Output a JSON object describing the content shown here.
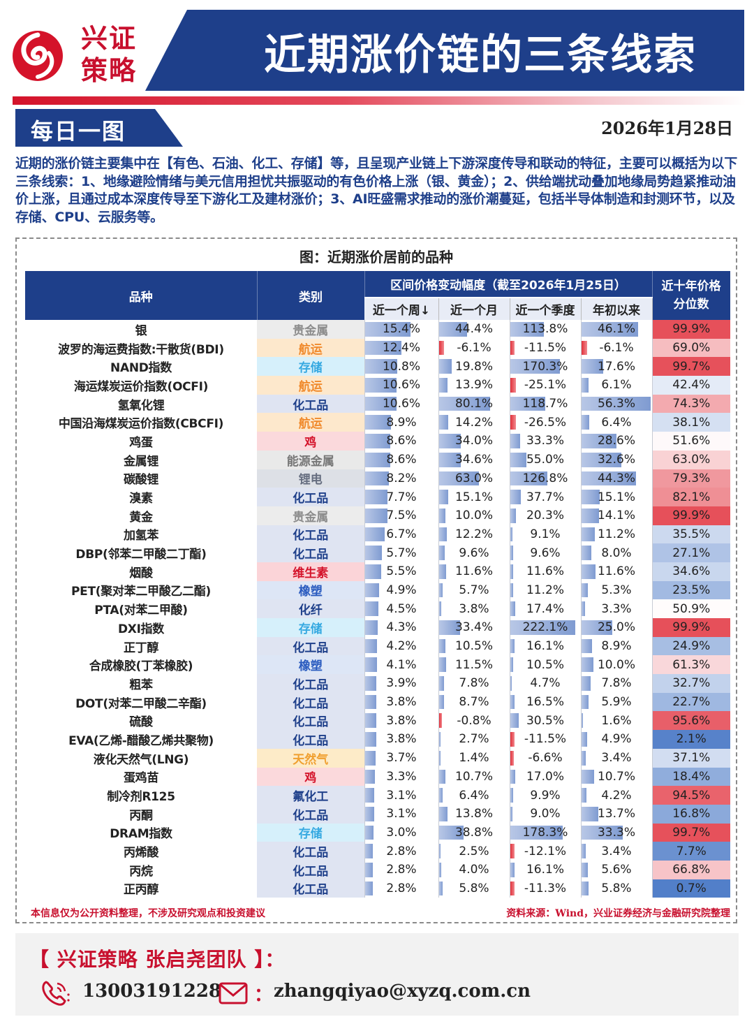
{
  "brand": {
    "line1": "兴证",
    "line2": "策略",
    "color": "#c8102e"
  },
  "header": {
    "title": "近期涨价链的三条线索",
    "banner_color": "#1e3f8a"
  },
  "sub_header": {
    "title": "每日一图",
    "date": "2026年1月28日"
  },
  "intro": "近期的涨价链主要集中在【有色、石油、化工、存储】等，且呈现产业链上下游深度传导和联动的特征，主要可以概括为以下三条线索：1、地缘避险情绪与美元信用担忧共振驱动的有色价格上涨（银、黄金）；2、供给端扰动叠加地缘局势趋紧推动油价上涨，且通过成本深度传导至下游化工及建材涨价；3、AI旺盛需求推动的涨价潮蔓延，包括半导体制造和封测环节，以及存储、CPU、云服务等。",
  "figure": {
    "caption": "图：近期涨价居前的品种"
  },
  "table": {
    "headers": {
      "name": "品种",
      "category": "类别",
      "change_group": "区间价格变动幅度（截至2026年1月25日）",
      "week": "近一个周↓",
      "month": "近一个月",
      "quarter": "近一个季度",
      "ytd": "年初以来",
      "percentile": "近十年价格分位数"
    },
    "rows": [
      {
        "name": "银",
        "cat": "贵金属",
        "w": 15.4,
        "m": 44.4,
        "q": 113.8,
        "y": 46.1,
        "p": 99.9
      },
      {
        "name": "波罗的海运费指数:干散货(BDI)",
        "cat": "航运",
        "w": 12.4,
        "m": -6.1,
        "q": -11.5,
        "y": -6.1,
        "p": 69.0
      },
      {
        "name": "NAND指数",
        "cat": "存储",
        "w": 10.8,
        "m": 19.8,
        "q": 170.3,
        "y": 17.6,
        "p": 99.7
      },
      {
        "name": "海运煤炭运价指数(OCFI)",
        "cat": "航运",
        "w": 10.6,
        "m": 13.9,
        "q": -25.1,
        "y": 6.1,
        "p": 42.4
      },
      {
        "name": "氢氧化锂",
        "cat": "化工品",
        "w": 10.6,
        "m": 80.1,
        "q": 118.7,
        "y": 56.3,
        "p": 74.3
      },
      {
        "name": "中国沿海煤炭运价指数(CBCFI)",
        "cat": "航运",
        "w": 8.9,
        "m": 14.2,
        "q": -26.5,
        "y": 6.4,
        "p": 38.1
      },
      {
        "name": "鸡蛋",
        "cat": "鸡",
        "w": 8.6,
        "m": 34.0,
        "q": 33.3,
        "y": 28.6,
        "p": 51.6
      },
      {
        "name": "金属锂",
        "cat": "能源金属",
        "w": 8.6,
        "m": 34.6,
        "q": 55.0,
        "y": 32.6,
        "p": 63.0
      },
      {
        "name": "碳酸锂",
        "cat": "锂电",
        "w": 8.2,
        "m": 63.0,
        "q": 126.8,
        "y": 44.3,
        "p": 79.3
      },
      {
        "name": "溴素",
        "cat": "化工品",
        "w": 7.7,
        "m": 15.1,
        "q": 37.7,
        "y": 15.1,
        "p": 82.1
      },
      {
        "name": "黄金",
        "cat": "贵金属",
        "w": 7.5,
        "m": 10.0,
        "q": 20.3,
        "y": 14.1,
        "p": 99.9
      },
      {
        "name": "加氢苯",
        "cat": "化工品",
        "w": 6.7,
        "m": 12.2,
        "q": 9.1,
        "y": 11.2,
        "p": 35.5
      },
      {
        "name": "DBP(邻苯二甲酸二丁酯)",
        "cat": "化工品",
        "w": 5.7,
        "m": 9.6,
        "q": 9.6,
        "y": 8.0,
        "p": 27.1
      },
      {
        "name": "烟酸",
        "cat": "维生素",
        "w": 5.5,
        "m": 11.6,
        "q": 11.6,
        "y": 11.6,
        "p": 34.6
      },
      {
        "name": "PET(聚对苯二甲酸乙二酯)",
        "cat": "橡塑",
        "w": 4.9,
        "m": 5.7,
        "q": 11.2,
        "y": 5.3,
        "p": 23.5
      },
      {
        "name": "PTA(对苯二甲酸)",
        "cat": "化纤",
        "w": 4.5,
        "m": 3.8,
        "q": 17.4,
        "y": 3.3,
        "p": 50.9
      },
      {
        "name": "DXI指数",
        "cat": "存储",
        "w": 4.3,
        "m": 33.4,
        "q": 222.1,
        "y": 25.0,
        "p": 99.9
      },
      {
        "name": "正丁醇",
        "cat": "化工品",
        "w": 4.2,
        "m": 10.5,
        "q": 16.1,
        "y": 8.9,
        "p": 24.9
      },
      {
        "name": "合成橡胶(丁苯橡胶)",
        "cat": "橡塑",
        "w": 4.1,
        "m": 11.5,
        "q": 10.5,
        "y": 10.0,
        "p": 61.3
      },
      {
        "name": "粗苯",
        "cat": "化工品",
        "w": 3.9,
        "m": 7.8,
        "q": 4.7,
        "y": 7.8,
        "p": 32.7
      },
      {
        "name": "DOT(对苯二甲酸二辛酯)",
        "cat": "化工品",
        "w": 3.8,
        "m": 8.7,
        "q": 16.5,
        "y": 5.9,
        "p": 22.7
      },
      {
        "name": "硫酸",
        "cat": "化工品",
        "w": 3.8,
        "m": -0.8,
        "q": 30.5,
        "y": 1.6,
        "p": 95.6
      },
      {
        "name": "EVA(乙烯-醋酸乙烯共聚物)",
        "cat": "化工品",
        "w": 3.8,
        "m": 2.7,
        "q": -11.5,
        "y": 4.9,
        "p": 2.1
      },
      {
        "name": "液化天然气(LNG)",
        "cat": "天然气",
        "w": 3.7,
        "m": 1.4,
        "q": -6.6,
        "y": 3.4,
        "p": 37.1
      },
      {
        "name": "蛋鸡苗",
        "cat": "鸡",
        "w": 3.3,
        "m": 10.7,
        "q": 17.0,
        "y": 10.7,
        "p": 18.4
      },
      {
        "name": "制冷剂R125",
        "cat": "氟化工",
        "w": 3.1,
        "m": 6.4,
        "q": 9.9,
        "y": 4.2,
        "p": 94.5
      },
      {
        "name": "丙酮",
        "cat": "化工品",
        "w": 3.1,
        "m": 13.8,
        "q": 9.0,
        "y": 13.7,
        "p": 16.8
      },
      {
        "name": "DRAM指数",
        "cat": "存储",
        "w": 3.0,
        "m": 38.8,
        "q": 178.3,
        "y": 33.3,
        "p": 99.7
      },
      {
        "name": "丙烯酸",
        "cat": "化工品",
        "w": 2.8,
        "m": 2.5,
        "q": -12.1,
        "y": 3.4,
        "p": 7.7
      },
      {
        "name": "丙烷",
        "cat": "化工品",
        "w": 2.8,
        "m": 4.0,
        "q": 16.1,
        "y": 5.6,
        "p": 66.8
      },
      {
        "name": "正丙醇",
        "cat": "化工品",
        "w": 2.8,
        "m": 5.8,
        "q": -11.3,
        "y": 5.8,
        "p": 0.7
      }
    ],
    "category_styles": {
      "贵金属": {
        "color": "#8c8c8c",
        "bg": "#ececec"
      },
      "航运": {
        "color": "#f08a2c",
        "bg": "#fde8cc"
      },
      "存储": {
        "color": "#36a9e1",
        "bg": "#d6f0fb"
      },
      "化工品": {
        "color": "#1e3f8a",
        "bg": "#dfe4f2"
      },
      "鸡": {
        "color": "#d4132a",
        "bg": "#fbd9dc"
      },
      "能源金属": {
        "color": "#777777",
        "bg": "#e9e9e9"
      },
      "锂电": {
        "color": "#666e80",
        "bg": "#dde0e6"
      },
      "维生素": {
        "color": "#d4132a",
        "bg": "#fbd4d8"
      },
      "橡塑": {
        "color": "#2a5bbf",
        "bg": "#dde6f6"
      },
      "化纤": {
        "color": "#1e3f8a",
        "bg": "#dfe4f2"
      },
      "天然气": {
        "color": "#f0a030",
        "bg": "#fdebc8"
      },
      "氟化工": {
        "color": "#1e3f8a",
        "bg": "#dfe4f2"
      }
    }
  },
  "footnotes": {
    "left": "本信息仅为公开资料整理，不涉及研究观点和投资建议",
    "right": "资料来源：Wind，兴业证券经济与金融研究院整理"
  },
  "contact": {
    "team": "【 兴证策略  张启尧团队 】：",
    "phone": "13003191228",
    "email_sep": "：",
    "email": "zhangqiyao@xyzq.com.cn"
  }
}
